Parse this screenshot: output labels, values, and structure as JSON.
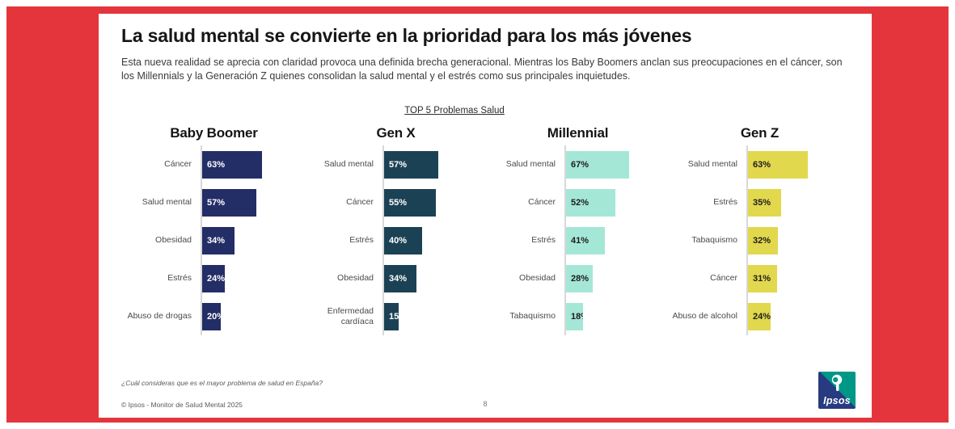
{
  "colors": {
    "frame_red": "#e4353c",
    "card_bg": "#ffffff",
    "axis_line": "#d8d8d8"
  },
  "header": {
    "title": "La salud mental se convierte en la prioridad para los más jóvenes",
    "subtitle": "Esta nueva realidad se aprecia con claridad provoca una  definida brecha generacional. Mientras los Baby Boomers  anclan sus preocupaciones en el cáncer, son los Millennials y la Generación Z quienes consolidan la salud mental y el estrés como sus principales inquietudes."
  },
  "chart_data": {
    "type": "bar",
    "orientation": "horizontal",
    "title": "TOP 5 Problemas Salud",
    "xlim": [
      0,
      100
    ],
    "value_suffix": "%",
    "grid": false,
    "groups": [
      {
        "name": "Baby Boomer",
        "bar_color": "#232d66",
        "value_text_color": "#ffffff",
        "categories": [
          "Cáncer",
          "Salud mental",
          "Obesidad",
          "Estrés",
          "Abuso de drogas"
        ],
        "values": [
          63,
          57,
          34,
          24,
          20
        ],
        "labels": [
          "63%",
          "57%",
          "34%",
          "24%",
          "20%"
        ]
      },
      {
        "name": "Gen X",
        "bar_color": "#1b4254",
        "value_text_color": "#ffffff",
        "categories": [
          "Salud mental",
          "Cáncer",
          "Estrés",
          "Obesidad",
          "Enfermedad cardíaca"
        ],
        "values": [
          57,
          55,
          40,
          34,
          15
        ],
        "labels": [
          "57%",
          "55%",
          "40%",
          "34%",
          "15%"
        ]
      },
      {
        "name": "Millennial",
        "bar_color": "#a5e7d6",
        "value_text_color": "#1c1c1c",
        "categories": [
          "Salud mental",
          "Cáncer",
          "Estrés",
          "Obesidad",
          "Tabaquismo"
        ],
        "values": [
          67,
          52,
          41,
          28,
          18
        ],
        "labels": [
          "67%",
          "52%",
          "41%",
          "28%",
          "18%"
        ]
      },
      {
        "name": "Gen Z",
        "bar_color": "#e2d84d",
        "value_text_color": "#1c1c1c",
        "categories": [
          "Salud mental",
          "Estrés",
          "Tabaquismo",
          "Cáncer",
          "Abuso de alcohol"
        ],
        "values": [
          63,
          35,
          32,
          31,
          24
        ],
        "labels": [
          "63%",
          "35%",
          "32%",
          "31%",
          "24%"
        ]
      }
    ]
  },
  "footer": {
    "question": "¿Cuál consideras que es el mayor problema de salud en España?",
    "copyright": "© Ipsos - Monitor de Salud Mental 2025",
    "page_number": "8",
    "logo_text": "Ipsos"
  }
}
